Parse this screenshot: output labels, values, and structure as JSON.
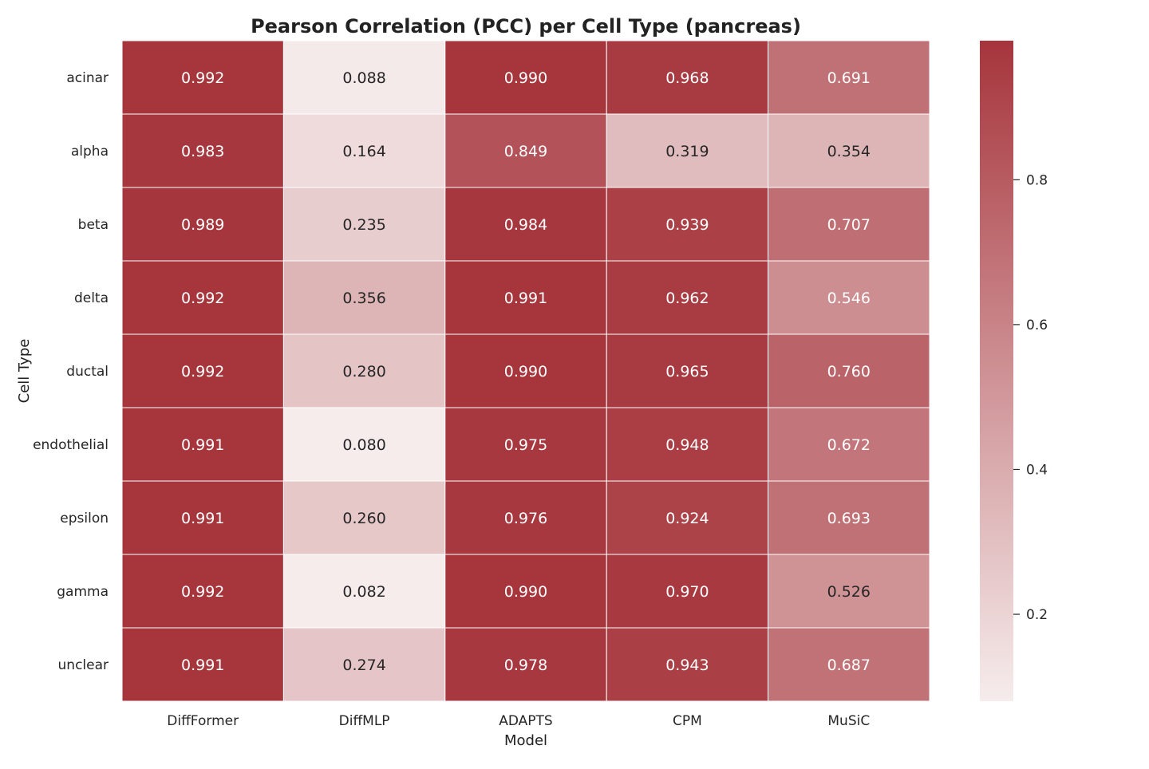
{
  "chart_data": {
    "type": "heatmap",
    "title": "Pearson Correlation (PCC) per Cell Type (pancreas)",
    "xlabel": "Model",
    "ylabel": "Cell Type",
    "x_categories": [
      "DiffFormer",
      "DiffMLP",
      "ADAPTS",
      "CPM",
      "MuSiC"
    ],
    "y_categories": [
      "acinar",
      "alpha",
      "beta",
      "delta",
      "ductal",
      "endothelial",
      "epsilon",
      "gamma",
      "unclear"
    ],
    "values": [
      [
        0.992,
        0.088,
        0.99,
        0.968,
        0.691
      ],
      [
        0.983,
        0.164,
        0.849,
        0.319,
        0.354
      ],
      [
        0.989,
        0.235,
        0.984,
        0.939,
        0.707
      ],
      [
        0.992,
        0.356,
        0.991,
        0.962,
        0.546
      ],
      [
        0.992,
        0.28,
        0.99,
        0.965,
        0.76
      ],
      [
        0.991,
        0.08,
        0.975,
        0.948,
        0.672
      ],
      [
        0.991,
        0.26,
        0.976,
        0.924,
        0.693
      ],
      [
        0.992,
        0.082,
        0.99,
        0.97,
        0.526
      ],
      [
        0.991,
        0.274,
        0.978,
        0.943,
        0.687
      ]
    ],
    "value_format": "0.000",
    "colorbar": {
      "range": [
        0.08,
        0.992
      ],
      "ticks": [
        0.2,
        0.4,
        0.6,
        0.8
      ],
      "tick_labels": [
        "0.2",
        "0.4",
        "0.6",
        "0.8"
      ],
      "color_low": "#f6ecec",
      "color_high": "#a6353c",
      "placement": "right"
    },
    "annotations": true,
    "grid": false
  }
}
